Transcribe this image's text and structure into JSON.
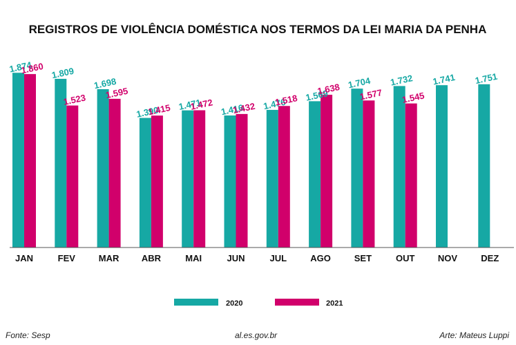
{
  "chart_data": {
    "type": "bar",
    "title": "REGISTROS DE VIOLÊNCIA DOMÉSTICA NOS TERMOS DA LEI MARIA DA PENHA",
    "xlabel": "",
    "ylabel": "",
    "ylim": [
      0,
      1950
    ],
    "grid": false,
    "legend_position": "bottom-center",
    "categories": [
      "JAN",
      "FEV",
      "MAR",
      "ABR",
      "MAI",
      "JUN",
      "JUL",
      "AGO",
      "SET",
      "OUT",
      "NOV",
      "DEZ"
    ],
    "series": [
      {
        "name": "2020",
        "color": "#16a8a4",
        "values": [
          1874,
          1809,
          1698,
          1390,
          1471,
          1416,
          1476,
          1569,
          1704,
          1732,
          1741,
          1751
        ],
        "labels": [
          "1.874",
          "1.809",
          "1.698",
          "1.390",
          "1.471",
          "1.416",
          "1.476",
          "1.569",
          "1.704",
          "1.732",
          "1.741",
          "1.751"
        ]
      },
      {
        "name": "2021",
        "color": "#d1006b",
        "values": [
          1860,
          1523,
          1595,
          1415,
          1472,
          1432,
          1518,
          1638,
          1577,
          1545,
          null,
          null
        ],
        "labels": [
          "1.860",
          "1.523",
          "1.595",
          "1.415",
          "1.472",
          "1.432",
          "1.518",
          "1.638",
          "1.577",
          "1.545",
          "",
          ""
        ]
      }
    ]
  },
  "footer": {
    "source": "Fonte: Sesp",
    "site": "al.es.gov.br",
    "credit": "Arte: Mateus Luppi"
  }
}
